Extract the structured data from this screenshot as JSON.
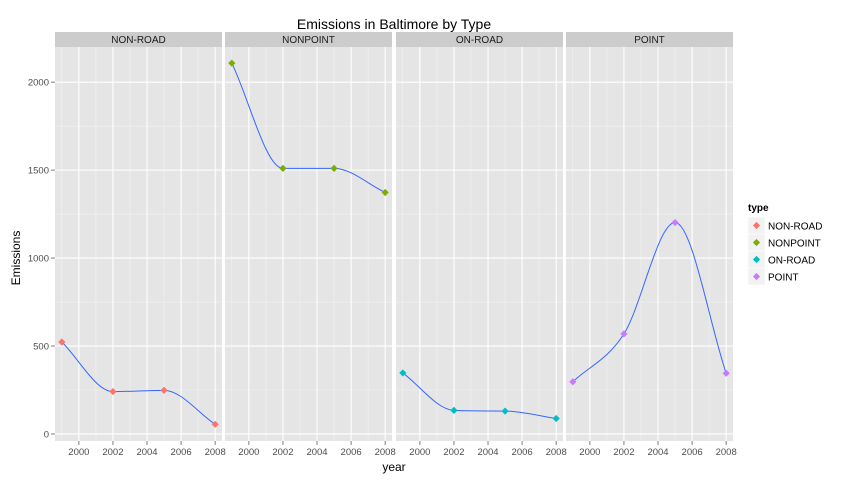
{
  "chart_data": {
    "type": "line",
    "title": "Emissions in Baltimore by Type",
    "xlabel": "year",
    "ylabel": "Emissions",
    "xlim": [
      1998.6,
      2008.4
    ],
    "ylim": [
      -40,
      2200
    ],
    "x_ticks": [
      2000,
      2002,
      2004,
      2006,
      2008
    ],
    "x_tick_labels": [
      "2000",
      "2002",
      "2004",
      "2006",
      "2008"
    ],
    "y_ticks": [
      0,
      500,
      1000,
      1500,
      2000
    ],
    "y_tick_labels": [
      "0",
      "500",
      "1000",
      "1500",
      "2000"
    ],
    "grid": true,
    "smoother_color": "#3366ff",
    "legend": {
      "title": "type",
      "position": "right"
    },
    "panels": [
      {
        "label": "NON-ROAD",
        "color": "#f8766d",
        "x": [
          1999,
          2002,
          2005,
          2008
        ],
        "y": [
          523,
          241,
          248,
          55
        ]
      },
      {
        "label": "NONPOINT",
        "color": "#7cae00",
        "x": [
          1999,
          2002,
          2005,
          2008
        ],
        "y": [
          2108,
          1510,
          1510,
          1373
        ]
      },
      {
        "label": "ON-ROAD",
        "color": "#00bfc4",
        "x": [
          1999,
          2002,
          2005,
          2008
        ],
        "y": [
          347,
          134,
          130,
          88
        ]
      },
      {
        "label": "POINT",
        "color": "#c77cff",
        "x": [
          1999,
          2002,
          2005,
          2008
        ],
        "y": [
          297,
          569,
          1202,
          345
        ]
      }
    ]
  }
}
